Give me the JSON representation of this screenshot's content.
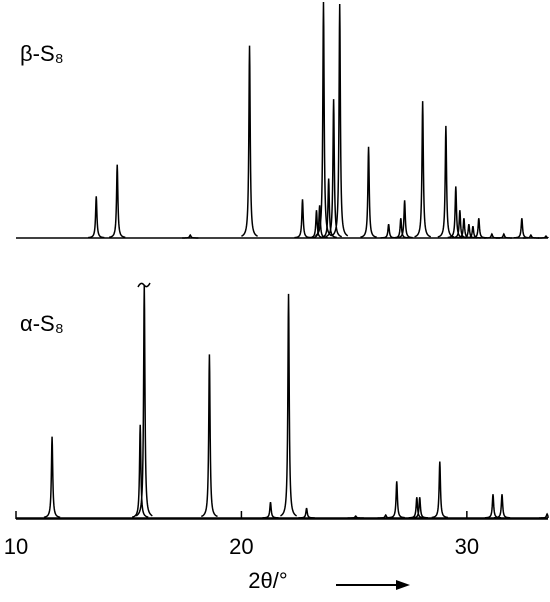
{
  "chart_data": {
    "type": "line",
    "xlabel": "2θ/°",
    "xlim": [
      10,
      33.6
    ],
    "xticks": [
      10,
      20,
      30
    ],
    "ylim": [
      0,
      240
    ],
    "series": [
      {
        "name": "β-S₈",
        "color": "#000000",
        "x": [
          13.56,
          14.49,
          17.73,
          20.36,
          22.71,
          23.33,
          23.47,
          23.64,
          23.87,
          24.09,
          24.36,
          25.64,
          26.53,
          27.07,
          27.24,
          28.04,
          29.07,
          29.51,
          29.69,
          29.87,
          30.09,
          30.27,
          30.53,
          31.11,
          31.64,
          32.44,
          32.84,
          33.51
        ],
        "values": [
          42,
          74,
          3,
          194,
          39,
          28,
          33,
          238,
          60,
          140,
          236,
          92,
          14,
          20,
          38,
          138,
          113,
          52,
          28,
          20,
          14,
          12,
          20,
          4,
          4,
          20,
          3,
          2
        ]
      },
      {
        "name": "α-S₈",
        "color": "#000000",
        "x": [
          11.6,
          15.51,
          15.69,
          18.58,
          21.29,
          22.09,
          22.89,
          25.07,
          26.4,
          26.89,
          27.78,
          27.91,
          28.8,
          31.16,
          31.56,
          33.56
        ],
        "values": [
          82,
          94,
          235,
          165,
          16,
          226,
          10,
          2,
          3,
          37,
          21,
          21,
          57,
          24,
          24,
          4
        ]
      }
    ]
  }
}
